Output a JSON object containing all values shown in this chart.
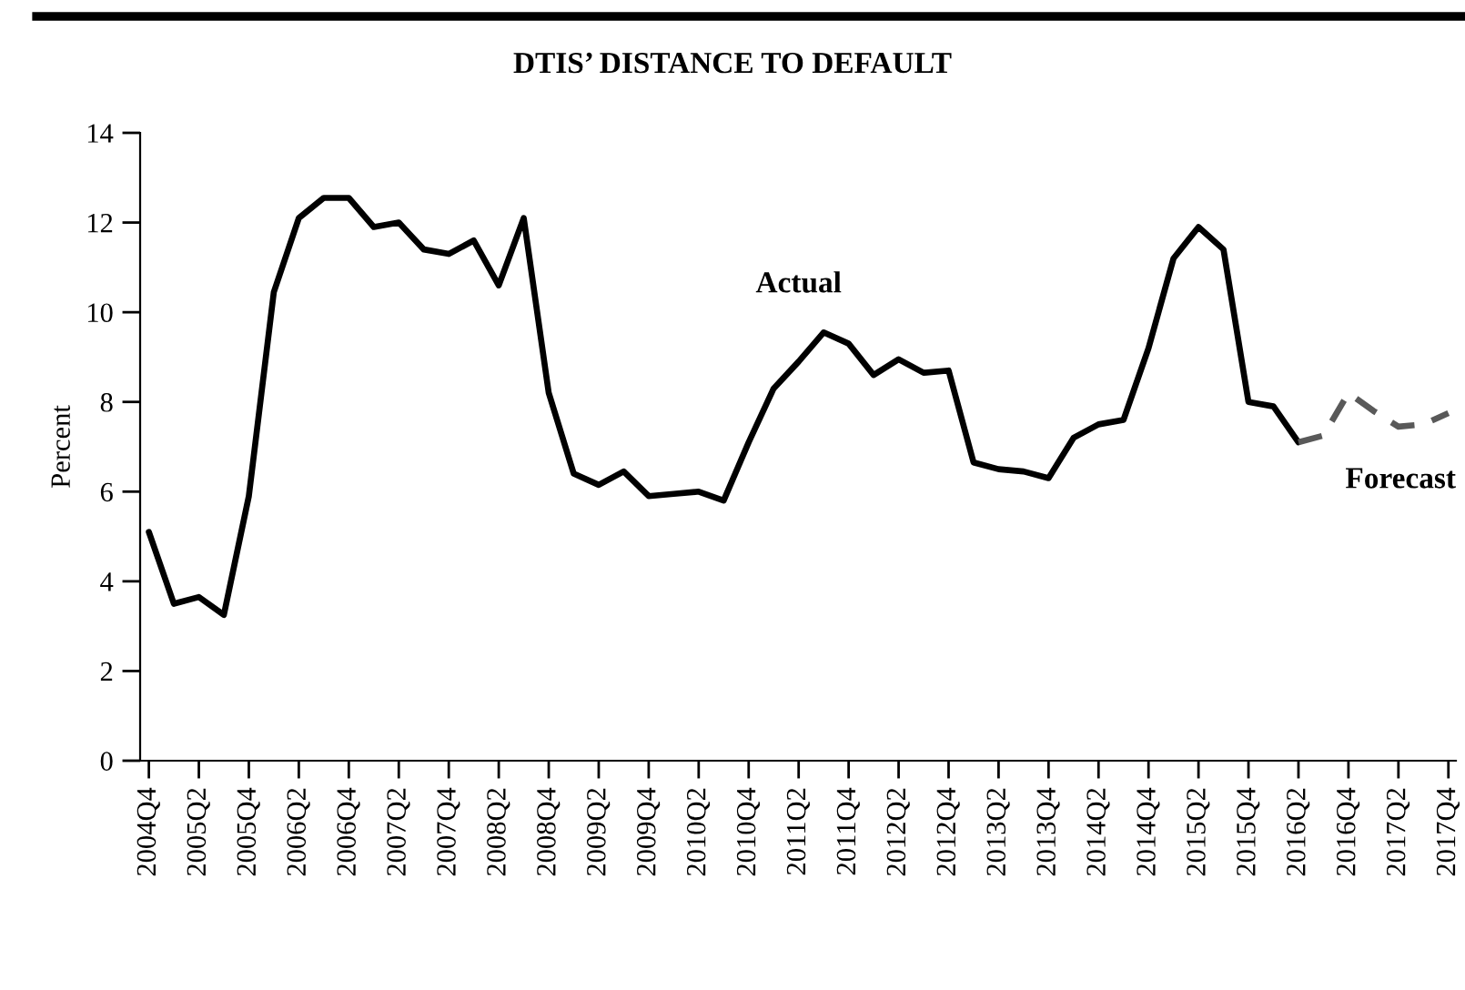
{
  "chart_data": {
    "type": "line",
    "title": "DTIS’ DISTANCE TO DEFAULT",
    "ylabel": "Percent",
    "categories": [
      "2004Q4",
      null,
      "2005Q2",
      null,
      "2005Q4",
      null,
      "2006Q2",
      null,
      "2006Q4",
      null,
      "2007Q2",
      null,
      "2007Q4",
      null,
      "2008Q2",
      null,
      "2008Q4",
      null,
      "2009Q2",
      null,
      "2009Q4",
      null,
      "2010Q2",
      null,
      "2010Q4",
      null,
      "2011Q2",
      null,
      "2011Q4",
      null,
      "2012Q2",
      null,
      "2012Q4",
      null,
      "2013Q2",
      null,
      "2013Q4",
      null,
      "2014Q2",
      null,
      "2014Q4",
      null,
      "2015Q2",
      null,
      "2015Q4",
      null,
      "2016Q2",
      null,
      "2016Q4",
      null,
      "2017Q2",
      null,
      "2017Q4"
    ],
    "series": [
      {
        "name": "Actual",
        "color": "#000000",
        "line_style": "solid",
        "values": [
          5.1,
          3.5,
          3.65,
          3.25,
          5.9,
          10.45,
          12.1,
          12.55,
          12.55,
          11.9,
          12.0,
          11.4,
          11.3,
          11.6,
          10.6,
          12.1,
          8.2,
          6.4,
          6.15,
          6.45,
          5.9,
          5.95,
          6.0,
          5.8,
          7.1,
          8.3,
          8.9,
          9.55,
          9.3,
          8.6,
          8.95,
          8.65,
          8.7,
          6.65,
          6.5,
          6.45,
          6.3,
          7.2,
          7.5,
          7.6,
          9.2,
          11.2,
          11.9,
          11.4,
          8.0,
          7.9,
          7.1,
          null,
          null,
          null,
          null,
          null,
          null
        ]
      },
      {
        "name": "Forecast",
        "color": "#595959",
        "line_style": "dashed",
        "values": [
          null,
          null,
          null,
          null,
          null,
          null,
          null,
          null,
          null,
          null,
          null,
          null,
          null,
          null,
          null,
          null,
          null,
          null,
          null,
          null,
          null,
          null,
          null,
          null,
          null,
          null,
          null,
          null,
          null,
          null,
          null,
          null,
          null,
          null,
          null,
          null,
          null,
          null,
          null,
          null,
          null,
          null,
          null,
          null,
          null,
          null,
          7.1,
          7.25,
          8.2,
          7.8,
          7.45,
          7.5,
          7.75
        ]
      }
    ],
    "ylim": [
      0,
      14
    ],
    "yticks": [
      0,
      2,
      4,
      6,
      8,
      10,
      12,
      14
    ],
    "grid": false,
    "legend": false,
    "marker": "none"
  }
}
